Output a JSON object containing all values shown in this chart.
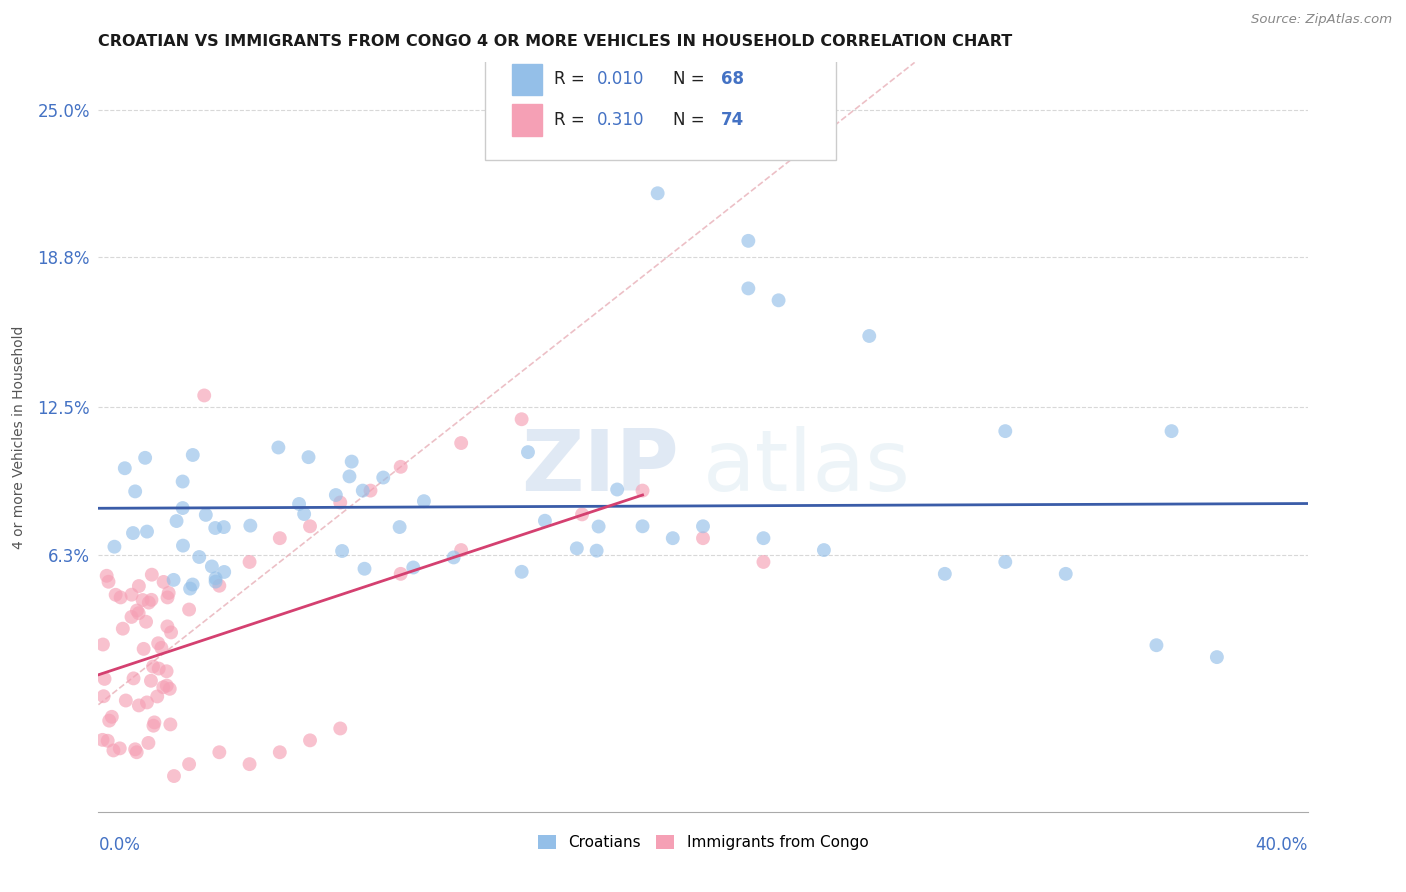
{
  "title": "CROATIAN VS IMMIGRANTS FROM CONGO 4 OR MORE VEHICLES IN HOUSEHOLD CORRELATION CHART",
  "source": "Source: ZipAtlas.com",
  "ylabel": "4 or more Vehicles in Household",
  "ytick_vals": [
    0.0,
    0.063,
    0.125,
    0.188,
    0.25
  ],
  "ytick_labels": [
    "",
    "6.3%",
    "12.5%",
    "18.8%",
    "25.0%"
  ],
  "xlim": [
    0.0,
    0.4
  ],
  "ylim": [
    -0.045,
    0.27
  ],
  "legend_r1": "0.010",
  "legend_n1": "68",
  "legend_r2": "0.310",
  "legend_n2": "74",
  "watermark_zip": "ZIP",
  "watermark_atlas": "atlas",
  "blue_color": "#94bfe8",
  "pink_color": "#f5a0b5",
  "trend_blue": "#3a5ca8",
  "trend_pink": "#d44070",
  "diag_color": "#e8b0b8",
  "grid_color": "#d8d8d8",
  "tick_color": "#4472c4"
}
